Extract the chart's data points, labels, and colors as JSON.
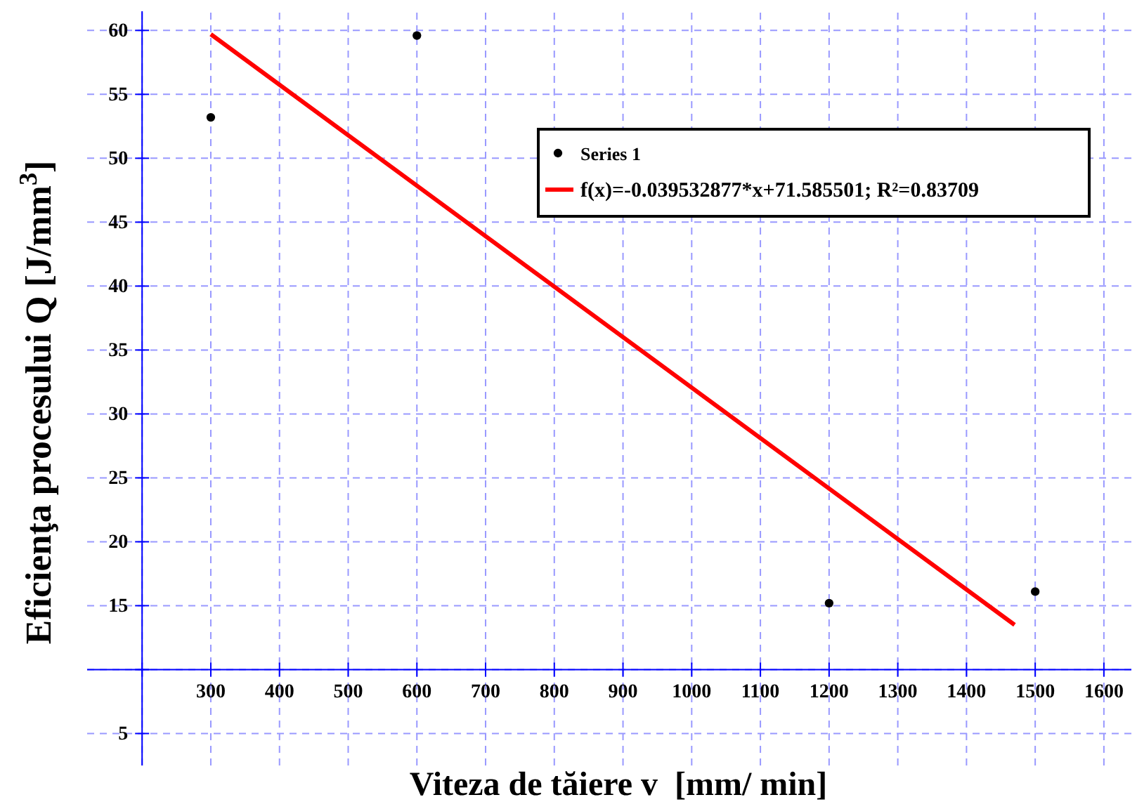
{
  "chart_data": {
    "type": "scatter",
    "xlabel": "Viteza de tăiere v  [mm/ min]",
    "ylabel": "Eficienţa procesului Q [J/mm$^{3}$]",
    "xlim": [
      120,
      1640
    ],
    "ylim": [
      2.5,
      61.5
    ],
    "xticks": [
      {
        "value": 200,
        "label": null
      },
      300,
      400,
      500,
      600,
      700,
      800,
      900,
      1000,
      1100,
      1200,
      1300,
      1400,
      1500,
      1600
    ],
    "yticks": [
      5,
      {
        "value": 10,
        "label": null
      },
      15,
      20,
      25,
      30,
      35,
      40,
      45,
      50,
      55,
      60
    ],
    "grid": true,
    "legend": "top right",
    "marker": "circle",
    "series": [
      {
        "name": "Series 1",
        "color": "#000000",
        "x": [
          300,
          600,
          1200,
          1500
        ],
        "values": [
          53.2,
          59.6,
          15.2,
          16.1
        ]
      },
      {
        "name": "f(x)=-0.039532877*x+71.585501; R²=0.83709",
        "type": "line",
        "marker": "none",
        "color": "#ff0000",
        "x": [
          300,
          1470
        ],
        "values": [
          59.7,
          13.5
        ]
      }
    ]
  }
}
